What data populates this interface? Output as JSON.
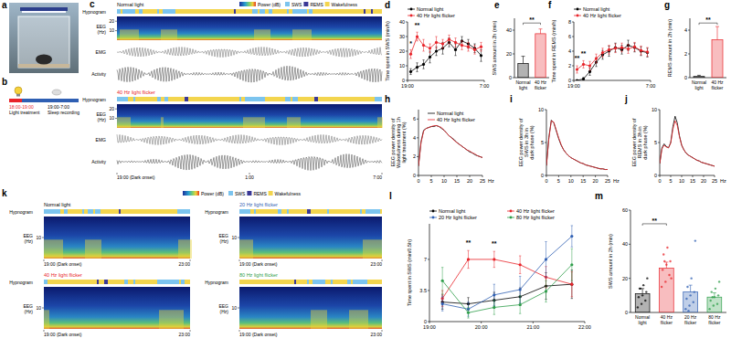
{
  "figure": {
    "panel_labels": [
      "a",
      "b",
      "c",
      "d",
      "e",
      "f",
      "g",
      "h",
      "i",
      "j",
      "k",
      "l",
      "m"
    ],
    "b": {
      "treatment_time": "18:00-19:00",
      "treatment": "Light treatment",
      "recording_time": "19:00-7:00",
      "recording": "Sleep recording"
    },
    "legend": {
      "power": "Power (dB)",
      "stages": [
        {
          "name": "SWS",
          "color": "#7cc4ee"
        },
        {
          "name": "REMS",
          "color": "#3a3896"
        },
        {
          "name": "Wakefulness",
          "color": "#f3d54e"
        }
      ]
    },
    "c": {
      "conditions": [
        {
          "name": "Normal light",
          "color": "#000000"
        },
        {
          "name": "40 Hz light flicker",
          "color": "#e8242a"
        }
      ],
      "rows": {
        "hypnogram": "Hypnogram",
        "eeg": "EEG",
        "eeg_unit": "(Hz)",
        "emg": "EMG",
        "activity": "Activity"
      },
      "eeg_ylim": [
        0,
        25
      ],
      "eeg_ticks": [
        10,
        20
      ],
      "time_lim": [
        19,
        31
      ],
      "times": [
        {
          "value": 19,
          "label": "19:00 (Dark onset)"
        },
        {
          "value": 25,
          "label": "1:00"
        },
        {
          "value": 31,
          "label": "7:00"
        }
      ]
    },
    "k": {
      "conditions": [
        {
          "name": "Normal light",
          "color": "#000000"
        },
        {
          "name": "20 Hz light flicker",
          "color": "#2f5fb3"
        },
        {
          "name": "40 Hz light flicker",
          "color": "#e8242a"
        },
        {
          "name": "80 Hz light flicker",
          "color": "#2e9e4a"
        }
      ],
      "rows": {
        "hypnogram": "Hypnogram",
        "eeg": "EEG",
        "eeg_unit": "(Hz)"
      },
      "eeg_ylim": [
        0,
        20
      ],
      "eeg_ticks": [
        10
      ],
      "time_lim": [
        19,
        23
      ],
      "times": [
        {
          "value": 19,
          "label": "19:00 (Dark onset)"
        },
        {
          "value": 23,
          "label": "23:00"
        }
      ]
    }
  },
  "chart_data": [
    {
      "type": "line",
      "y_label": "Time spent in SWS (min/h)",
      "x": [
        19.5,
        20.5,
        21.5,
        22.5,
        23.5,
        24.5,
        25.5,
        26.5,
        27.5,
        28.5,
        29.5,
        30.5
      ],
      "xlim": [
        19,
        31
      ],
      "xticks": [
        {
          "value": 19,
          "label": "19:00"
        },
        {
          "value": 31,
          "label": "7:00"
        }
      ],
      "ylim": [
        0,
        40
      ],
      "yticks": [
        0,
        10,
        20,
        30,
        40
      ],
      "legend": "top",
      "series": [
        {
          "name": "Normal light",
          "color": "#000000",
          "marker": "circle",
          "values": [
            6,
            9,
            11,
            16,
            20,
            22,
            26,
            21,
            27,
            25,
            22,
            17
          ],
          "errors": [
            2,
            3,
            3,
            4,
            3,
            4,
            3,
            4,
            3,
            3,
            3,
            4
          ]
        },
        {
          "name": "40 Hz light flicker",
          "color": "#e8242a",
          "marker": "circle",
          "values": [
            18,
            30,
            24,
            22,
            26,
            25,
            28,
            26,
            24,
            23,
            21,
            23
          ],
          "errors": [
            3,
            3,
            4,
            3,
            4,
            3,
            3,
            3,
            3,
            3,
            3,
            3
          ]
        }
      ],
      "annotations": [
        {
          "text": "*",
          "x": 19.5,
          "y": 24
        },
        {
          "text": "**",
          "x": 20.5,
          "y": 36
        }
      ]
    },
    {
      "type": "bar",
      "y_label": "SWS amount in 2h (min)",
      "categories": [
        "Normal light",
        "40 Hz flicker"
      ],
      "values": [
        12,
        37
      ],
      "errors": [
        6,
        4
      ],
      "colors": [
        "#000000",
        "#e8242a"
      ],
      "ylim": [
        0,
        50
      ],
      "yticks": [
        0,
        20,
        40
      ],
      "annotations": [
        {
          "text": "**",
          "x": 0.5,
          "y": 46
        }
      ]
    },
    {
      "type": "line",
      "y_label": "Time spent in REMS (min/h)",
      "x": [
        19.5,
        20.5,
        21.5,
        22.5,
        23.5,
        24.5,
        25.5,
        26.5,
        27.5,
        28.5,
        29.5,
        30.5
      ],
      "xlim": [
        19,
        31
      ],
      "xticks": [
        {
          "value": 19,
          "label": "19:00"
        },
        {
          "value": 31,
          "label": "7:00"
        }
      ],
      "ylim": [
        0,
        8
      ],
      "yticks": [
        0,
        2,
        4,
        6,
        8
      ],
      "legend": "top",
      "series": [
        {
          "name": "Normal light",
          "color": "#000000",
          "marker": "circle",
          "values": [
            0,
            0.2,
            1.2,
            2.5,
            3.5,
            4,
            4.5,
            4.2,
            4.8,
            4.5,
            4,
            3.8
          ],
          "errors": [
            0,
            0.2,
            0.5,
            0.6,
            0.6,
            0.7,
            0.6,
            0.6,
            0.7,
            0.6,
            0.6,
            0.6
          ]
        },
        {
          "name": "40 Hz light flicker",
          "color": "#e8242a",
          "marker": "circle",
          "values": [
            1.5,
            2.2,
            2.0,
            3.0,
            3.8,
            4.2,
            4.4,
            4.5,
            4.3,
            4.6,
            4.1,
            3.9
          ],
          "errors": [
            0.5,
            0.5,
            0.6,
            0.6,
            0.6,
            0.6,
            0.6,
            0.6,
            0.6,
            0.6,
            0.6,
            0.6
          ]
        }
      ],
      "annotations": [
        {
          "text": "**",
          "x": 19.5,
          "y": 2.8
        },
        {
          "text": "**",
          "x": 20.5,
          "y": 3.4
        }
      ]
    },
    {
      "type": "bar",
      "y_label": "REMS amount in 2h (min)",
      "categories": [
        "Normal light",
        "40 Hz flicker"
      ],
      "values": [
        0.1,
        3.2
      ],
      "errors": [
        0.1,
        1.1
      ],
      "colors": [
        "#000000",
        "#e8242a"
      ],
      "ylim": [
        0,
        5
      ],
      "yticks": [
        0,
        2,
        4
      ],
      "annotations": [
        {
          "text": "**",
          "x": 0.5,
          "y": 4.6
        }
      ]
    },
    {
      "type": "line",
      "y_label": [
        "EEG power density of",
        "Wakefulness during 1h",
        "light treatment (%)"
      ],
      "x_label": "Hz",
      "x": [
        0,
        1,
        2,
        3,
        4,
        5,
        6,
        7,
        8,
        9,
        10,
        11,
        12,
        13,
        14,
        15,
        16,
        17,
        18,
        19,
        20,
        21,
        22,
        23,
        24,
        25
      ],
      "xlim": [
        0,
        25
      ],
      "xticks": [
        0,
        5,
        10,
        15,
        20,
        25
      ],
      "ylim": [
        0,
        7
      ],
      "yticks": [
        0,
        2,
        4,
        6
      ],
      "legend": "top-right",
      "series": [
        {
          "name": "Normal light",
          "color": "#000000",
          "marker": "none",
          "values": [
            1.0,
            3.6,
            4.8,
            5.0,
            5.1,
            5.2,
            5.2,
            5.3,
            5.2,
            5.0,
            4.8,
            4.5,
            4.2,
            4.0,
            3.8,
            3.5,
            3.3,
            3.1,
            2.9,
            2.7,
            2.5,
            2.4,
            2.2,
            2.1,
            2.0,
            1.9
          ]
        },
        {
          "name": "40 Hz light flicker",
          "color": "#e8242a",
          "marker": "none",
          "values": [
            1.0,
            3.5,
            4.7,
            5.0,
            5.1,
            5.2,
            5.3,
            5.3,
            5.2,
            5.1,
            4.8,
            4.5,
            4.2,
            4.0,
            3.7,
            3.5,
            3.3,
            3.1,
            2.9,
            2.7,
            2.6,
            2.4,
            2.3,
            2.1,
            2.0,
            1.9
          ]
        }
      ]
    },
    {
      "type": "line",
      "y_label": [
        "EEG power density of",
        "SWS in 3h in",
        "dark phase (%)"
      ],
      "x_label": "Hz",
      "x": [
        0,
        1,
        2,
        3,
        4,
        5,
        6,
        7,
        8,
        9,
        10,
        11,
        12,
        13,
        14,
        15,
        16,
        17,
        18,
        19,
        20,
        21,
        22,
        23,
        24,
        25
      ],
      "xlim": [
        0,
        25
      ],
      "xticks": [
        0,
        5,
        10,
        15,
        20,
        25
      ],
      "ylim": [
        0,
        10
      ],
      "yticks": [
        0,
        5,
        10
      ],
      "series": [
        {
          "name": "Normal light",
          "color": "#000000",
          "marker": "none",
          "values": [
            1.5,
            5.8,
            8.4,
            8.0,
            6.8,
            5.6,
            4.6,
            3.9,
            3.4,
            3.0,
            2.7,
            2.5,
            2.3,
            2.1,
            1.9,
            1.8,
            1.6,
            1.5,
            1.4,
            1.3,
            1.2,
            1.1,
            1.0,
            1.0,
            0.9,
            0.9
          ]
        },
        {
          "name": "40 Hz light flicker",
          "color": "#e8242a",
          "marker": "none",
          "values": [
            1.5,
            5.6,
            8.3,
            8.1,
            6.9,
            5.7,
            4.7,
            3.9,
            3.4,
            3.0,
            2.7,
            2.5,
            2.3,
            2.1,
            1.9,
            1.8,
            1.6,
            1.5,
            1.4,
            1.3,
            1.2,
            1.1,
            1.0,
            1.0,
            0.9,
            0.9
          ]
        }
      ]
    },
    {
      "type": "line",
      "y_label": [
        "EEG power density of",
        "REMS in 3h in",
        "dark phase (%)"
      ],
      "x_label": "Hz",
      "x": [
        0,
        1,
        2,
        3,
        4,
        5,
        6,
        7,
        8,
        9,
        10,
        11,
        12,
        13,
        14,
        15,
        16,
        17,
        18,
        19,
        20,
        21,
        22,
        23,
        24,
        25
      ],
      "xlim": [
        0,
        25
      ],
      "xticks": [
        0,
        5,
        10,
        15,
        20,
        25
      ],
      "ylim": [
        0,
        10
      ],
      "yticks": [
        0,
        5,
        10
      ],
      "series": [
        {
          "name": "Normal light",
          "color": "#000000",
          "marker": "none",
          "values": [
            1.8,
            4.2,
            4.8,
            4.4,
            4.2,
            5.0,
            7.4,
            9.0,
            8.0,
            6.0,
            4.6,
            3.9,
            3.4,
            3.1,
            2.9,
            2.7,
            2.5,
            2.3,
            2.2,
            2.0,
            1.9,
            1.8,
            1.7,
            1.6,
            1.5,
            1.4
          ]
        },
        {
          "name": "40 Hz light flicker",
          "color": "#e8242a",
          "marker": "none",
          "values": [
            1.8,
            4.0,
            4.6,
            4.3,
            4.2,
            4.9,
            7.0,
            8.3,
            7.6,
            5.9,
            4.6,
            3.9,
            3.4,
            3.1,
            2.9,
            2.7,
            2.5,
            2.3,
            2.2,
            2.0,
            1.9,
            1.8,
            1.7,
            1.6,
            1.5,
            1.4
          ]
        }
      ]
    },
    {
      "type": "line",
      "y_label": "Time spent in SWS (min/0.5h)",
      "x": [
        19.25,
        19.75,
        20.25,
        20.75,
        21.25,
        21.75
      ],
      "xlim": [
        19,
        22
      ],
      "xticks": [
        {
          "value": 19,
          "label": "19:00"
        },
        {
          "value": 20,
          "label": "20:00"
        },
        {
          "value": 21,
          "label": "21:00"
        },
        {
          "value": 22,
          "label": "22:00"
        }
      ],
      "ylim": [
        0,
        11
      ],
      "yticks": [
        0,
        3.5,
        7
      ],
      "legend": "top",
      "series": [
        {
          "name": "Normal light",
          "color": "#000000",
          "marker": "circle",
          "values": [
            2.2,
            2.0,
            2.4,
            2.8,
            4.0,
            4.2
          ],
          "errors": [
            0.8,
            0.7,
            0.9,
            1.0,
            1.5,
            1.6
          ]
        },
        {
          "name": "40 Hz light flicker",
          "color": "#e8242a",
          "marker": "circle",
          "values": [
            2.6,
            7.0,
            7.0,
            6.4,
            5.0,
            4.2
          ],
          "errors": [
            0.9,
            1.0,
            0.9,
            1.0,
            1.2,
            1.4
          ]
        },
        {
          "name": "20 Hz light flicker",
          "color": "#2f5fb3",
          "marker": "circle",
          "values": [
            2.0,
            1.4,
            3.0,
            3.6,
            7.0,
            9.6
          ],
          "errors": [
            0.8,
            0.8,
            1.2,
            1.5,
            2.0,
            1.2
          ]
        },
        {
          "name": "80 Hz light flicker",
          "color": "#2e9e4a",
          "marker": "circle",
          "values": [
            4.6,
            1.0,
            1.6,
            1.9,
            3.4,
            6.4
          ],
          "errors": [
            1.5,
            0.6,
            0.8,
            1.0,
            1.2,
            1.8
          ]
        }
      ],
      "annotations": [
        {
          "text": "**",
          "x": 19.75,
          "y": 8.6
        },
        {
          "text": "**",
          "x": 20.25,
          "y": 8.5
        }
      ]
    },
    {
      "type": "bar",
      "y_label": "SWS amount in 2h (min)",
      "categories": [
        "Normal light",
        "40 Hz flicker",
        "20 Hz flicker",
        "80 Hz flicker"
      ],
      "values": [
        11,
        26,
        12,
        9
      ],
      "errors": [
        3,
        3.5,
        4,
        2.5
      ],
      "colors": [
        "#000000",
        "#e8242a",
        "#2f5fb3",
        "#2e9e4a"
      ],
      "ylim": [
        0,
        60
      ],
      "yticks": [
        0,
        20,
        40,
        60
      ],
      "points": [
        [
          3,
          5,
          7,
          9,
          10,
          12,
          14,
          16,
          20,
          14
        ],
        [
          15,
          18,
          22,
          25,
          28,
          30,
          34,
          38,
          20,
          30
        ],
        [
          2,
          4,
          6,
          8,
          10,
          12,
          15,
          20,
          42,
          1
        ],
        [
          2,
          4,
          5,
          7,
          9,
          10,
          12,
          14,
          18,
          9
        ]
      ],
      "annotations": [
        {
          "text": "**",
          "x": 0.5,
          "y": 52
        }
      ]
    }
  ]
}
